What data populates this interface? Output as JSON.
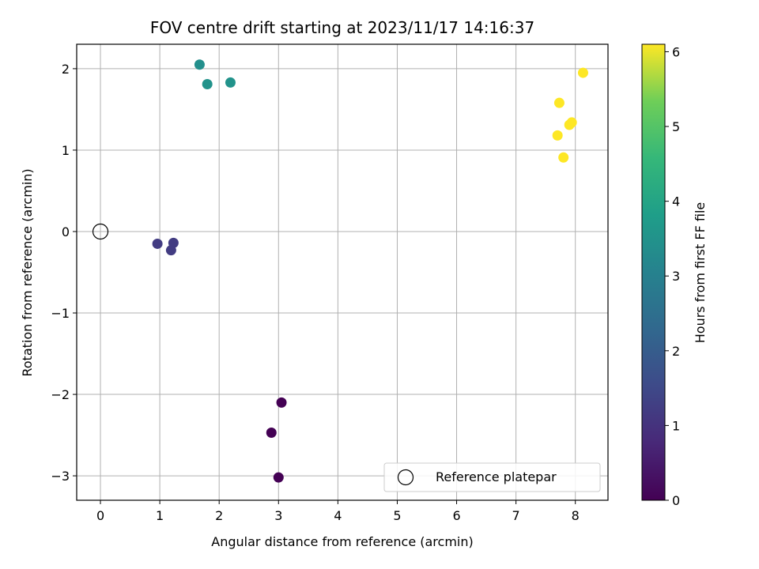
{
  "chart_data": {
    "type": "scatter",
    "title": "FOV centre drift starting at 2023/11/17 14:16:37",
    "xlabel": "Angular distance from reference (arcmin)",
    "ylabel": "Rotation from reference (arcmin)",
    "xlim": [
      -0.4,
      8.55
    ],
    "ylim": [
      -3.3,
      2.3
    ],
    "xticks": [
      0,
      1,
      2,
      3,
      4,
      5,
      6,
      7,
      8
    ],
    "yticks": [
      -3,
      -2,
      -1,
      0,
      1,
      2
    ],
    "xtick_labels": [
      "0",
      "1",
      "2",
      "3",
      "4",
      "5",
      "6",
      "7",
      "8"
    ],
    "ytick_labels": [
      "−3",
      "−2",
      "−1",
      "0",
      "1",
      "2"
    ],
    "grid": true,
    "legend_position": "lower-right",
    "colormap": "viridis",
    "reference": {
      "label": "Reference platepar",
      "x": 0,
      "y": 0
    },
    "points": [
      {
        "x": 3.05,
        "y": -2.1,
        "hours": 0.0
      },
      {
        "x": 2.88,
        "y": -2.47,
        "hours": 0.0
      },
      {
        "x": 3.0,
        "y": -3.02,
        "hours": 0.0
      },
      {
        "x": 0.96,
        "y": -0.15,
        "hours": 1.2
      },
      {
        "x": 1.23,
        "y": -0.14,
        "hours": 1.2
      },
      {
        "x": 1.19,
        "y": -0.23,
        "hours": 1.2
      },
      {
        "x": 1.67,
        "y": 2.05,
        "hours": 3.4
      },
      {
        "x": 1.8,
        "y": 1.81,
        "hours": 3.5
      },
      {
        "x": 2.19,
        "y": 1.83,
        "hours": 3.5
      },
      {
        "x": 7.73,
        "y": 1.58,
        "hours": 6.1
      },
      {
        "x": 8.13,
        "y": 1.95,
        "hours": 6.1
      },
      {
        "x": 7.7,
        "y": 1.18,
        "hours": 6.1
      },
      {
        "x": 7.9,
        "y": 1.31,
        "hours": 6.1
      },
      {
        "x": 7.94,
        "y": 1.34,
        "hours": 6.1
      },
      {
        "x": 7.8,
        "y": 0.91,
        "hours": 6.1
      }
    ],
    "colorbar": {
      "label": "Hours from first FF file",
      "range": [
        0,
        6.1
      ],
      "ticks": [
        0,
        1,
        2,
        3,
        4,
        5,
        6
      ],
      "tick_labels": [
        "0",
        "1",
        "2",
        "3",
        "4",
        "5",
        "6"
      ]
    }
  }
}
